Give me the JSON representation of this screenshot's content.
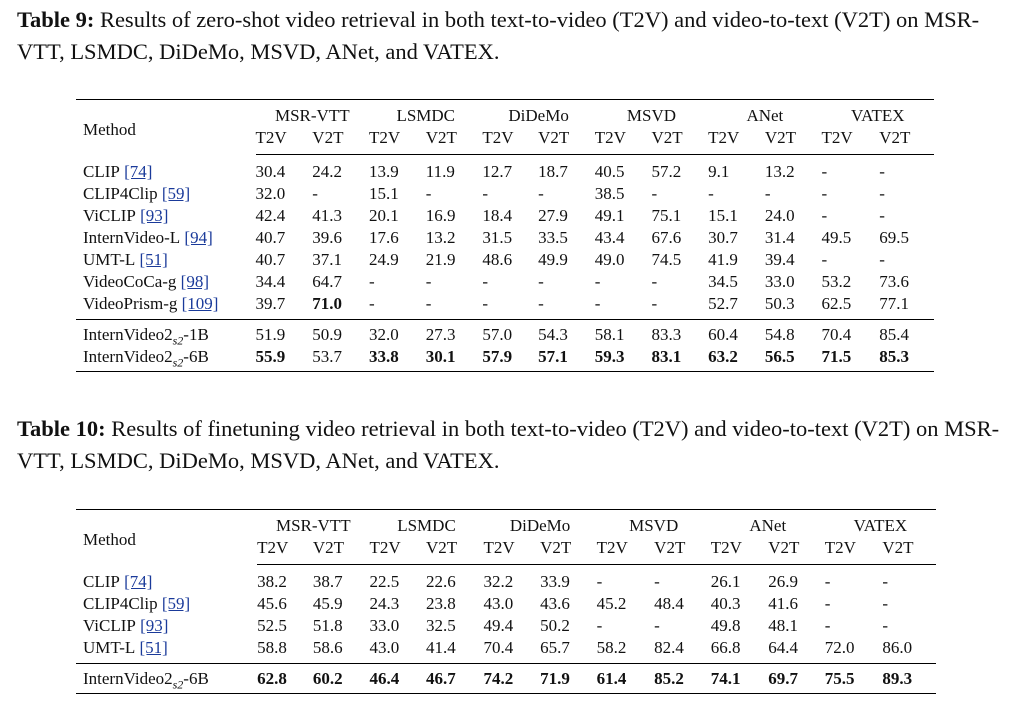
{
  "table9": {
    "caption_label": "Table 9:",
    "caption_text": " Results of zero-shot video retrieval in both text-to-video (T2V) and video-to-text (V2T) on MSR-VTT, LSMDC, DiDeMo, MSVD, ANet, and VATEX.",
    "method_header": "Method",
    "groups": [
      "MSR-VTT",
      "LSMDC",
      "DiDeMo",
      "MSVD",
      "ANet",
      "VATEX"
    ],
    "sub_headers": [
      "T2V",
      "V2T"
    ],
    "rows": [
      {
        "name": "CLIP",
        "ref": "[74]",
        "values": [
          "30.4",
          "24.2",
          "13.9",
          "11.9",
          "12.7",
          "18.7",
          "40.5",
          "57.2",
          "9.1",
          "13.2",
          "-",
          "-"
        ]
      },
      {
        "name": "CLIP4Clip",
        "ref": "[59]",
        "values": [
          "32.0",
          "-",
          "15.1",
          "-",
          "-",
          "-",
          "38.5",
          "-",
          "-",
          "-",
          "-",
          "-"
        ]
      },
      {
        "name": "ViCLIP",
        "ref": "[93]",
        "values": [
          "42.4",
          "41.3",
          "20.1",
          "16.9",
          "18.4",
          "27.9",
          "49.1",
          "75.1",
          "15.1",
          "24.0",
          "-",
          "-"
        ]
      },
      {
        "name": "InternVideo-L",
        "ref": "[94]",
        "values": [
          "40.7",
          "39.6",
          "17.6",
          "13.2",
          "31.5",
          "33.5",
          "43.4",
          "67.6",
          "30.7",
          "31.4",
          "49.5",
          "69.5"
        ]
      },
      {
        "name": "UMT-L",
        "ref": "[51]",
        "values": [
          "40.7",
          "37.1",
          "24.9",
          "21.9",
          "48.6",
          "49.9",
          "49.0",
          "74.5",
          "41.9",
          "39.4",
          "-",
          "-"
        ]
      },
      {
        "name": "VideoCoCa-g",
        "ref": "[98]",
        "values": [
          "34.4",
          "64.7",
          "-",
          "-",
          "-",
          "-",
          "-",
          "-",
          "34.5",
          "33.0",
          "53.2",
          "73.6"
        ]
      },
      {
        "name": "VideoPrism-g",
        "ref": "[109]",
        "values": [
          "39.7",
          "71.0",
          "-",
          "-",
          "-",
          "-",
          "-",
          "-",
          "52.7",
          "50.3",
          "62.5",
          "77.1"
        ],
        "bold": [
          1
        ]
      },
      {
        "name": "InternVideo2",
        "sub": "s2",
        "suffix": "-1B",
        "values": [
          "51.9",
          "50.9",
          "32.0",
          "27.3",
          "57.0",
          "54.3",
          "58.1",
          "83.3",
          "60.4",
          "54.8",
          "70.4",
          "85.4"
        ]
      },
      {
        "name": "InternVideo2",
        "sub": "s2",
        "suffix": "-6B",
        "values": [
          "55.9",
          "53.7",
          "33.8",
          "30.1",
          "57.9",
          "57.1",
          "59.3",
          "83.1",
          "63.2",
          "56.5",
          "71.5",
          "85.3"
        ],
        "bold": [
          0,
          2,
          3,
          4,
          5,
          6,
          7,
          8,
          9,
          10,
          11
        ]
      }
    ]
  },
  "table10": {
    "caption_label": "Table 10:",
    "caption_text": " Results of finetuning video retrieval in both text-to-video (T2V) and video-to-text (V2T) on MSR-VTT, LSMDC, DiDeMo, MSVD, ANet, and VATEX.",
    "method_header": "Method",
    "groups": [
      "MSR-VTT",
      "LSMDC",
      "DiDeMo",
      "MSVD",
      "ANet",
      "VATEX"
    ],
    "sub_headers": [
      "T2V",
      "V2T"
    ],
    "rows": [
      {
        "name": "CLIP",
        "ref": "[74]",
        "values": [
          "38.2",
          "38.7",
          "22.5",
          "22.6",
          "32.2",
          "33.9",
          "-",
          "-",
          "26.1",
          "26.9",
          "-",
          "-"
        ]
      },
      {
        "name": "CLIP4Clip",
        "ref": "[59]",
        "values": [
          "45.6",
          "45.9",
          "24.3",
          "23.8",
          "43.0",
          "43.6",
          "45.2",
          "48.4",
          "40.3",
          "41.6",
          "-",
          "-"
        ]
      },
      {
        "name": "ViCLIP",
        "ref": "[93]",
        "values": [
          "52.5",
          "51.8",
          "33.0",
          "32.5",
          "49.4",
          "50.2",
          "-",
          "-",
          "49.8",
          "48.1",
          "-",
          "-"
        ]
      },
      {
        "name": "UMT-L",
        "ref": "[51]",
        "values": [
          "58.8",
          "58.6",
          "43.0",
          "41.4",
          "70.4",
          "65.7",
          "58.2",
          "82.4",
          "66.8",
          "64.4",
          "72.0",
          "86.0"
        ]
      },
      {
        "name": "InternVideo2",
        "sub": "s2",
        "suffix": "-6B",
        "values": [
          "62.8",
          "60.2",
          "46.4",
          "46.7",
          "74.2",
          "71.9",
          "61.4",
          "85.2",
          "74.1",
          "69.7",
          "75.5",
          "89.3"
        ],
        "bold": [
          0,
          1,
          2,
          3,
          4,
          5,
          6,
          7,
          8,
          9,
          10,
          11
        ]
      }
    ]
  }
}
